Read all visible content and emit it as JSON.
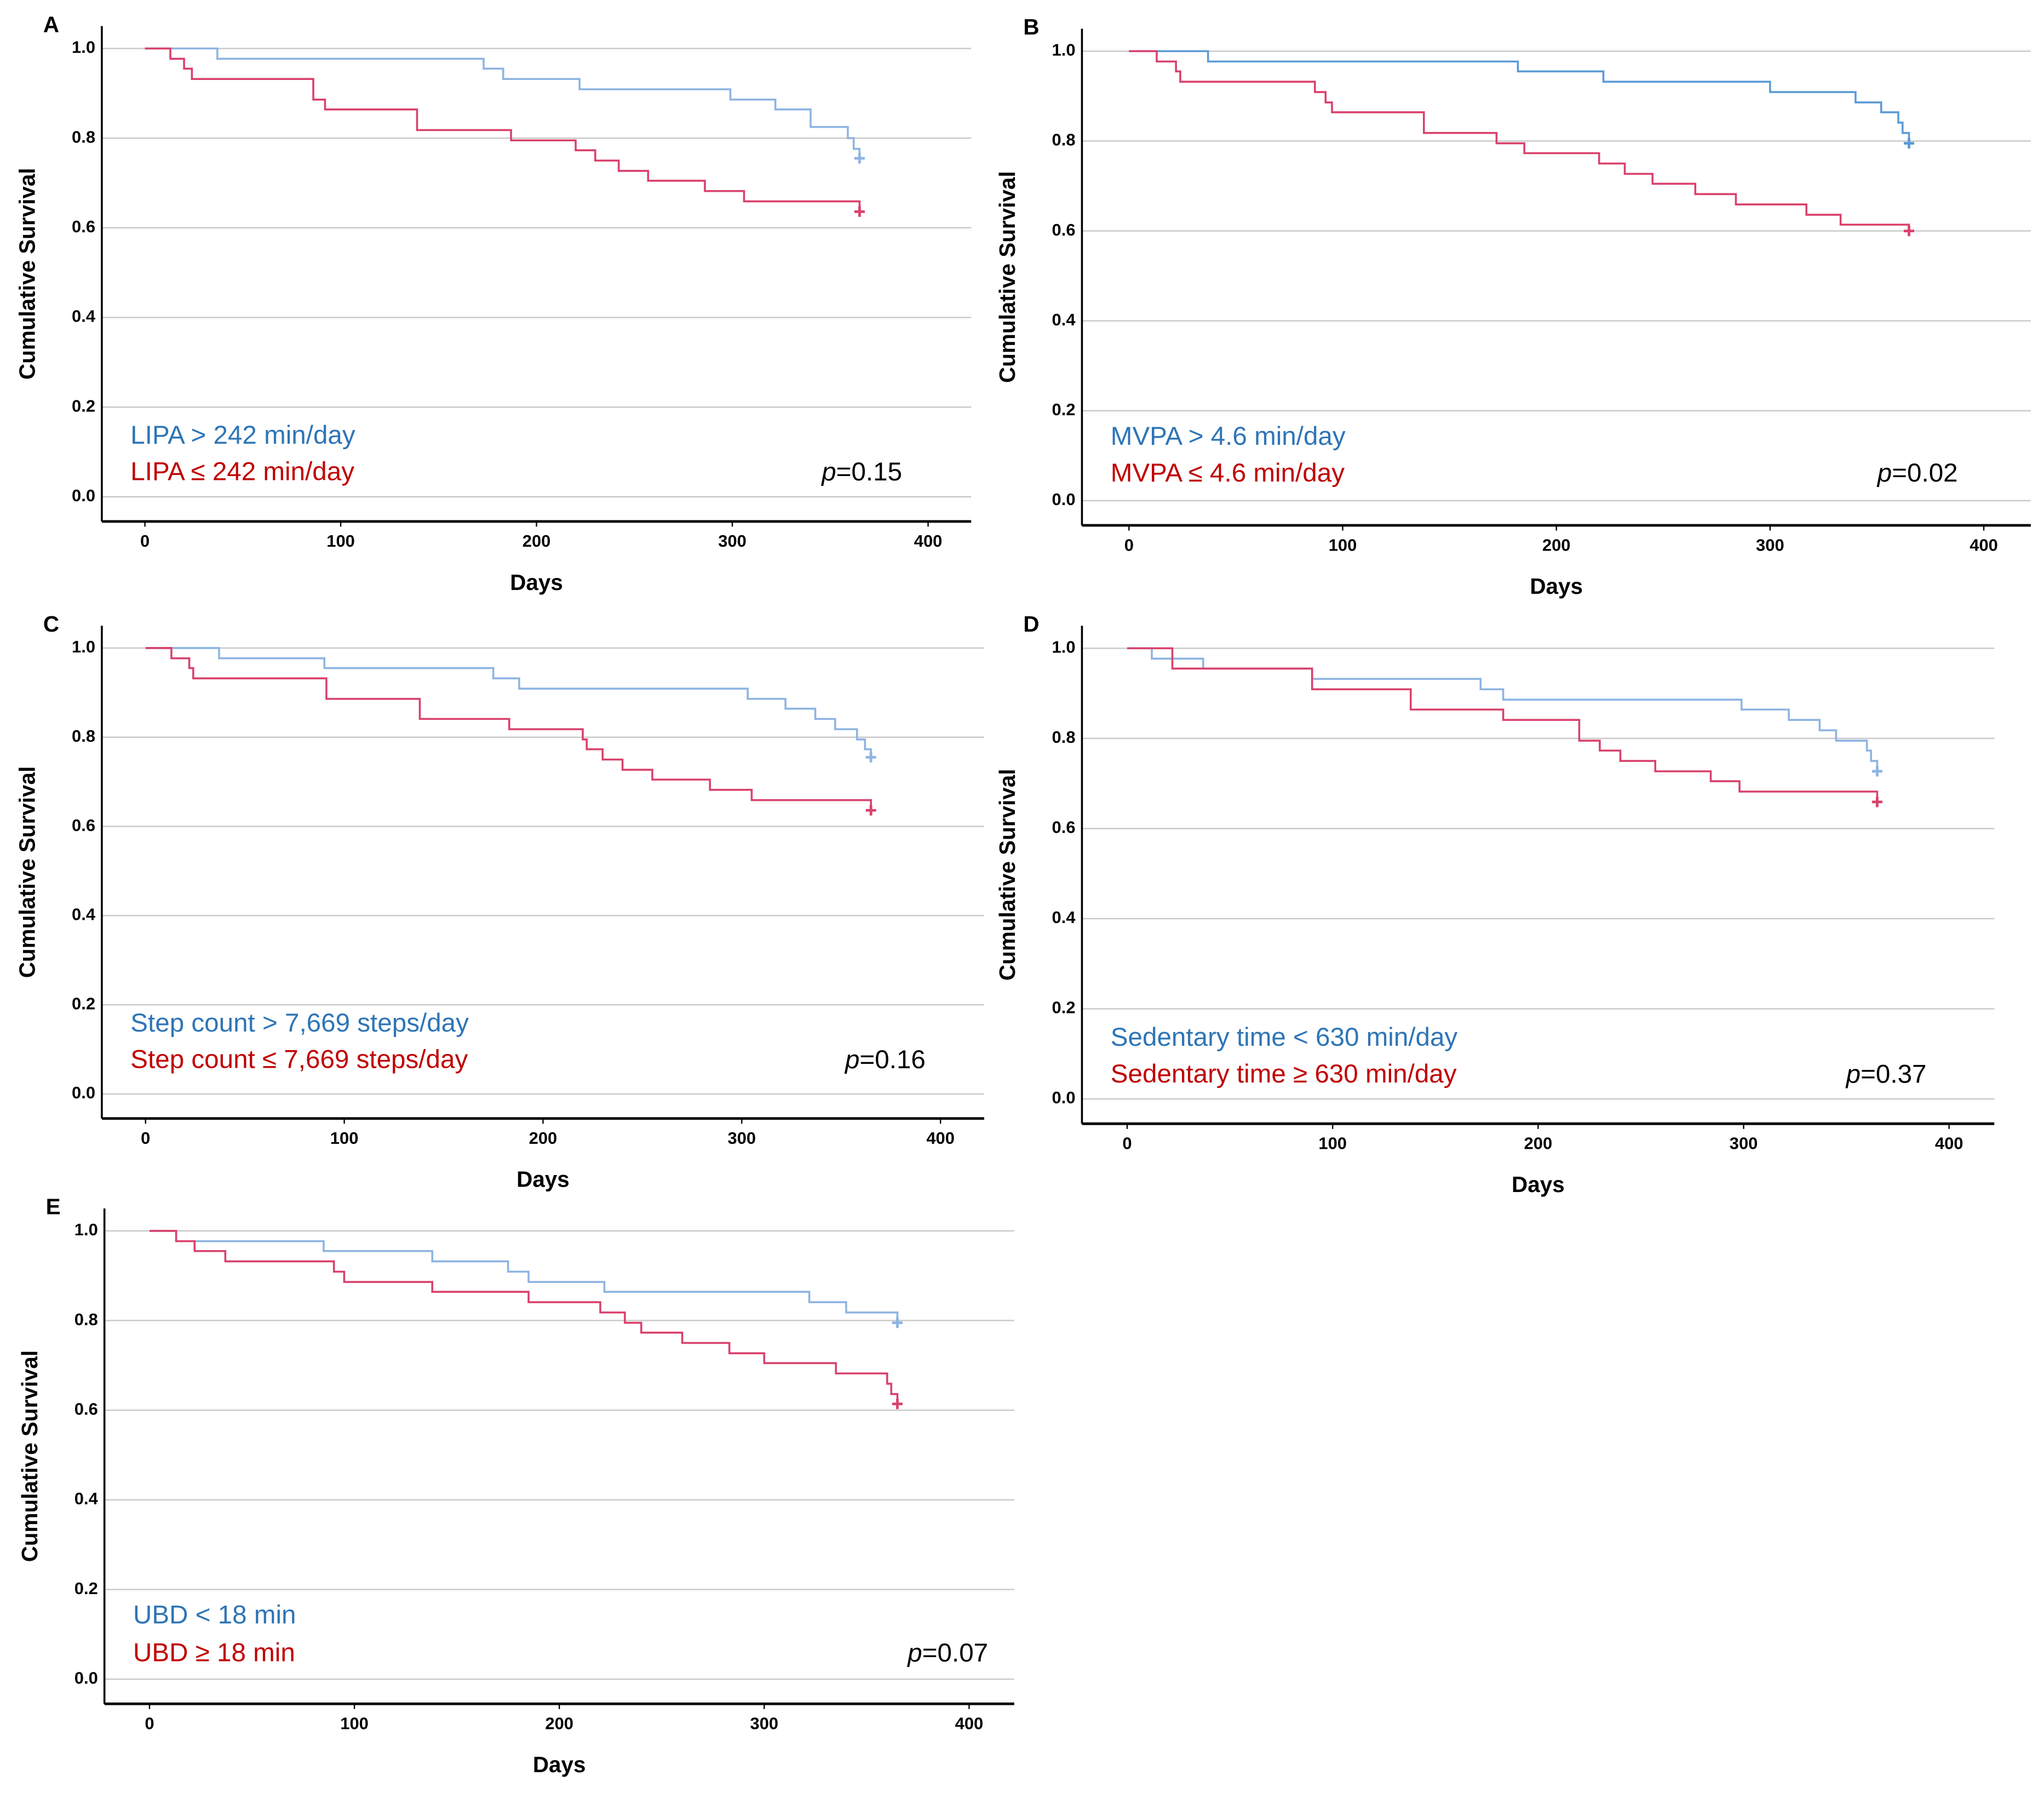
{
  "chart_data": [
    {
      "type": "step",
      "panel_label": "A",
      "ylabel": "Cumulative Survival",
      "xlabel": "Days",
      "xlim": [
        -22,
        422
      ],
      "ylim": [
        -0.055,
        1.05
      ],
      "xticks": [
        0,
        100,
        200,
        300,
        400
      ],
      "yticks": [
        {
          "value": 0,
          "label": "0.0"
        },
        {
          "value": 0.2,
          "label": "0.2"
        },
        {
          "value": 0.4,
          "label": "0.4"
        },
        {
          "value": 0.6,
          "label": "0.6"
        },
        {
          "value": 0.8,
          "label": "0.8"
        },
        {
          "value": 1,
          "label": "1.0"
        }
      ],
      "grid": true,
      "annotation_prefix": "p",
      "annotation": "=0.15",
      "series": [
        {
          "name": "LIPA > 242 min/day",
          "color": "#8db4e2",
          "label_color": "#2e75b6",
          "x": [
            0,
            37,
            173,
            183,
            222,
            299,
            322,
            340,
            359,
            362,
            365
          ],
          "values": [
            1.0,
            0.977,
            0.955,
            0.932,
            0.909,
            0.886,
            0.864,
            0.825,
            0.8,
            0.776,
            0.755
          ]
        },
        {
          "name": "LIPA ≤ 242 min/day",
          "color": "#d9416b",
          "label_color": "#c00000",
          "x": [
            0,
            13,
            20,
            24,
            86,
            92,
            139,
            187,
            220,
            230,
            242,
            257,
            286,
            306,
            363,
            365
          ],
          "values": [
            1.0,
            0.977,
            0.955,
            0.932,
            0.886,
            0.864,
            0.818,
            0.795,
            0.773,
            0.75,
            0.727,
            0.705,
            0.682,
            0.659,
            0.659,
            0.636
          ]
        }
      ]
    },
    {
      "type": "step",
      "panel_label": "B",
      "ylabel": "Cumulative Survival",
      "xlabel": "Days",
      "xlim": [
        -22,
        422
      ],
      "ylim": [
        -0.055,
        1.05
      ],
      "xticks": [
        0,
        100,
        200,
        300,
        400
      ],
      "yticks": [
        {
          "value": 0,
          "label": "0.0"
        },
        {
          "value": 0.2,
          "label": "0.2"
        },
        {
          "value": 0.4,
          "label": "0.4"
        },
        {
          "value": 0.6,
          "label": "0.6"
        },
        {
          "value": 0.8,
          "label": "0.8"
        },
        {
          "value": 1,
          "label": "1.0"
        }
      ],
      "grid": true,
      "annotation_prefix": "p",
      "annotation": "=0.02",
      "series": [
        {
          "name": "MVPA > 4.6 min/day",
          "color": "#5b9bd5",
          "label_color": "#2e75b6",
          "x": [
            0,
            37,
            182,
            222,
            300,
            340,
            352,
            360,
            362,
            365
          ],
          "values": [
            1.0,
            0.977,
            0.955,
            0.932,
            0.909,
            0.886,
            0.864,
            0.841,
            0.818,
            0.795
          ]
        },
        {
          "name": "MVPA ≤ 4.6 min/day",
          "color": "#d9416b",
          "label_color": "#c00000",
          "x": [
            0,
            13,
            22,
            24,
            87,
            92,
            95,
            138,
            172,
            185,
            220,
            232,
            245,
            265,
            284,
            317,
            333,
            365
          ],
          "values": [
            1.0,
            0.977,
            0.955,
            0.932,
            0.909,
            0.886,
            0.864,
            0.818,
            0.795,
            0.773,
            0.75,
            0.727,
            0.705,
            0.682,
            0.659,
            0.636,
            0.614,
            0.6
          ]
        }
      ]
    },
    {
      "type": "step",
      "panel_label": "C",
      "ylabel": "Cumulative Survival",
      "xlabel": "Days",
      "xlim": [
        -22,
        422
      ],
      "ylim": [
        -0.055,
        1.05
      ],
      "xticks": [
        0,
        100,
        200,
        300,
        400
      ],
      "yticks": [
        {
          "value": 0,
          "label": "0.0"
        },
        {
          "value": 0.2,
          "label": "0.2"
        },
        {
          "value": 0.4,
          "label": "0.4"
        },
        {
          "value": 0.6,
          "label": "0.6"
        },
        {
          "value": 0.8,
          "label": "0.8"
        },
        {
          "value": 1,
          "label": "1.0"
        }
      ],
      "grid": true,
      "annotation_prefix": "p",
      "annotation": "=0.16",
      "series": [
        {
          "name": "Step count > 7,669 steps/day",
          "color": "#8db4e2",
          "label_color": "#2e75b6",
          "x": [
            0,
            37,
            90,
            175,
            188,
            303,
            322,
            337,
            347,
            358,
            362,
            365
          ],
          "values": [
            1.0,
            0.977,
            0.955,
            0.932,
            0.909,
            0.886,
            0.864,
            0.841,
            0.818,
            0.795,
            0.773,
            0.755
          ]
        },
        {
          "name": "Step count ≤ 7,669 steps/day",
          "color": "#d9416b",
          "label_color": "#c00000",
          "x": [
            0,
            13,
            22,
            24,
            91,
            138,
            183,
            220,
            222,
            230,
            240,
            255,
            284,
            305,
            365
          ],
          "values": [
            1.0,
            0.977,
            0.955,
            0.932,
            0.886,
            0.841,
            0.818,
            0.795,
            0.773,
            0.75,
            0.727,
            0.705,
            0.682,
            0.659,
            0.636
          ]
        }
      ]
    },
    {
      "type": "step",
      "panel_label": "D",
      "ylabel": "Cumulative Survival",
      "xlabel": "Days",
      "xlim": [
        -22,
        422
      ],
      "ylim": [
        -0.055,
        1.05
      ],
      "xticks": [
        0,
        100,
        200,
        300,
        400
      ],
      "yticks": [
        {
          "value": 0,
          "label": "0.0"
        },
        {
          "value": 0.2,
          "label": "0.2"
        },
        {
          "value": 0.4,
          "label": "0.4"
        },
        {
          "value": 0.6,
          "label": "0.6"
        },
        {
          "value": 0.8,
          "label": "0.8"
        },
        {
          "value": 1,
          "label": "1.0"
        }
      ],
      "grid": true,
      "annotation_prefix": "p",
      "annotation": "=0.37",
      "series": [
        {
          "name": "Sedentary time < 630 min/day",
          "color": "#8db4e2",
          "label_color": "#2e75b6",
          "x": [
            0,
            12,
            37,
            90,
            172,
            183,
            299,
            322,
            337,
            345,
            360,
            362,
            365
          ],
          "values": [
            1.0,
            0.977,
            0.955,
            0.932,
            0.909,
            0.886,
            0.864,
            0.841,
            0.818,
            0.795,
            0.773,
            0.75,
            0.727
          ]
        },
        {
          "name": "Sedentary time ≥ 630 min/day",
          "color": "#d9416b",
          "label_color": "#c00000",
          "x": [
            0,
            22,
            90,
            138,
            183,
            220,
            230,
            240,
            257,
            284,
            298,
            365
          ],
          "values": [
            1.0,
            0.955,
            0.909,
            0.864,
            0.841,
            0.795,
            0.773,
            0.75,
            0.727,
            0.705,
            0.682,
            0.659
          ]
        }
      ]
    },
    {
      "type": "step",
      "panel_label": "E",
      "ylabel": "Cumulative Survival",
      "xlabel": "Days",
      "xlim": [
        -22,
        422
      ],
      "ylim": [
        -0.055,
        1.05
      ],
      "xticks": [
        0,
        100,
        200,
        300,
        400
      ],
      "yticks": [
        {
          "value": 0,
          "label": "0.0"
        },
        {
          "value": 0.2,
          "label": "0.2"
        },
        {
          "value": 0.4,
          "label": "0.4"
        },
        {
          "value": 0.6,
          "label": "0.6"
        },
        {
          "value": 0.8,
          "label": "0.8"
        },
        {
          "value": 1,
          "label": "1.0"
        }
      ],
      "grid": true,
      "annotation_prefix": "p",
      "annotation": "=0.07",
      "series": [
        {
          "name": "UBD < 18 min",
          "color": "#8db4e2",
          "label_color": "#2e75b6",
          "x": [
            0,
            13,
            85,
            138,
            175,
            185,
            222,
            322,
            340,
            365
          ],
          "values": [
            1.0,
            0.977,
            0.955,
            0.932,
            0.909,
            0.886,
            0.864,
            0.841,
            0.818,
            0.795
          ]
        },
        {
          "name": "UBD ≥ 18 min",
          "color": "#d9416b",
          "label_color": "#c00000",
          "x": [
            0,
            13,
            22,
            37,
            90,
            95,
            138,
            185,
            220,
            232,
            240,
            260,
            283,
            300,
            335,
            360,
            362,
            365
          ],
          "values": [
            1.0,
            0.977,
            0.955,
            0.932,
            0.909,
            0.886,
            0.864,
            0.841,
            0.818,
            0.795,
            0.773,
            0.75,
            0.727,
            0.705,
            0.682,
            0.659,
            0.636,
            0.614
          ]
        }
      ]
    }
  ]
}
